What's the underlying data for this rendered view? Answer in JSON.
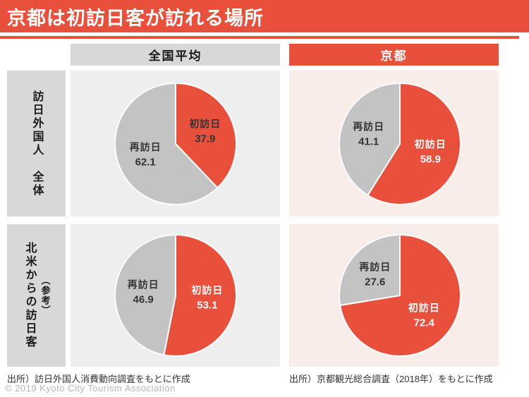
{
  "title": "京都は初訪日客が訪れる場所",
  "column_headers": {
    "national": "全国平均",
    "kyoto": "京都"
  },
  "row_labels": {
    "all_visitors": "訪日外国人　全体",
    "north_america": "北米からの訪日客",
    "north_america_note": "（参考）"
  },
  "chart_data": [
    {
      "type": "pie",
      "row": "訪日外国人 全体",
      "column": "全国平均",
      "start_angle_deg": 0,
      "direction": "clockwise",
      "slices": [
        {
          "label": "初訪日",
          "value": 37.9,
          "color": "#E8503C",
          "label_color": "#333333"
        },
        {
          "label": "再訪日",
          "value": 62.1,
          "color": "#C4C3C3",
          "label_color": "#333333"
        }
      ]
    },
    {
      "type": "pie",
      "row": "訪日外国人 全体",
      "column": "京都",
      "start_angle_deg": 0,
      "direction": "clockwise",
      "slices": [
        {
          "label": "初訪日",
          "value": 58.9,
          "color": "#E8503C",
          "label_color": "#FFFFFF"
        },
        {
          "label": "再訪日",
          "value": 41.1,
          "color": "#C4C3C3",
          "label_color": "#333333"
        }
      ]
    },
    {
      "type": "pie",
      "row": "北米からの訪日客（参考）",
      "column": "全国平均",
      "start_angle_deg": 0,
      "direction": "clockwise",
      "slices": [
        {
          "label": "初訪日",
          "value": 53.1,
          "color": "#E8503C",
          "label_color": "#FFFFFF"
        },
        {
          "label": "再訪日",
          "value": 46.9,
          "color": "#C4C3C3",
          "label_color": "#333333"
        }
      ]
    },
    {
      "type": "pie",
      "row": "北米からの訪日客（参考）",
      "column": "京都",
      "start_angle_deg": 0,
      "direction": "clockwise",
      "slices": [
        {
          "label": "初訪日",
          "value": 72.4,
          "color": "#E8503C",
          "label_color": "#FFFFFF"
        },
        {
          "label": "再訪日",
          "value": 27.6,
          "color": "#C4C3C3",
          "label_color": "#333333"
        }
      ]
    }
  ],
  "footnotes": {
    "left": "出所）訪日外国人消費動向調査をもとに作成",
    "right": "出所）京都観光総合調査（2018年）をもとに作成"
  },
  "copyright": "© 2019 Kyoto City Tourism Association",
  "colors": {
    "accent_red": "#E8503C",
    "slice_gray": "#C4C3C3",
    "header_gray": "#D9D8D8",
    "panel_gray": "#EFEEEE",
    "panel_pink": "#F9EDEA"
  }
}
